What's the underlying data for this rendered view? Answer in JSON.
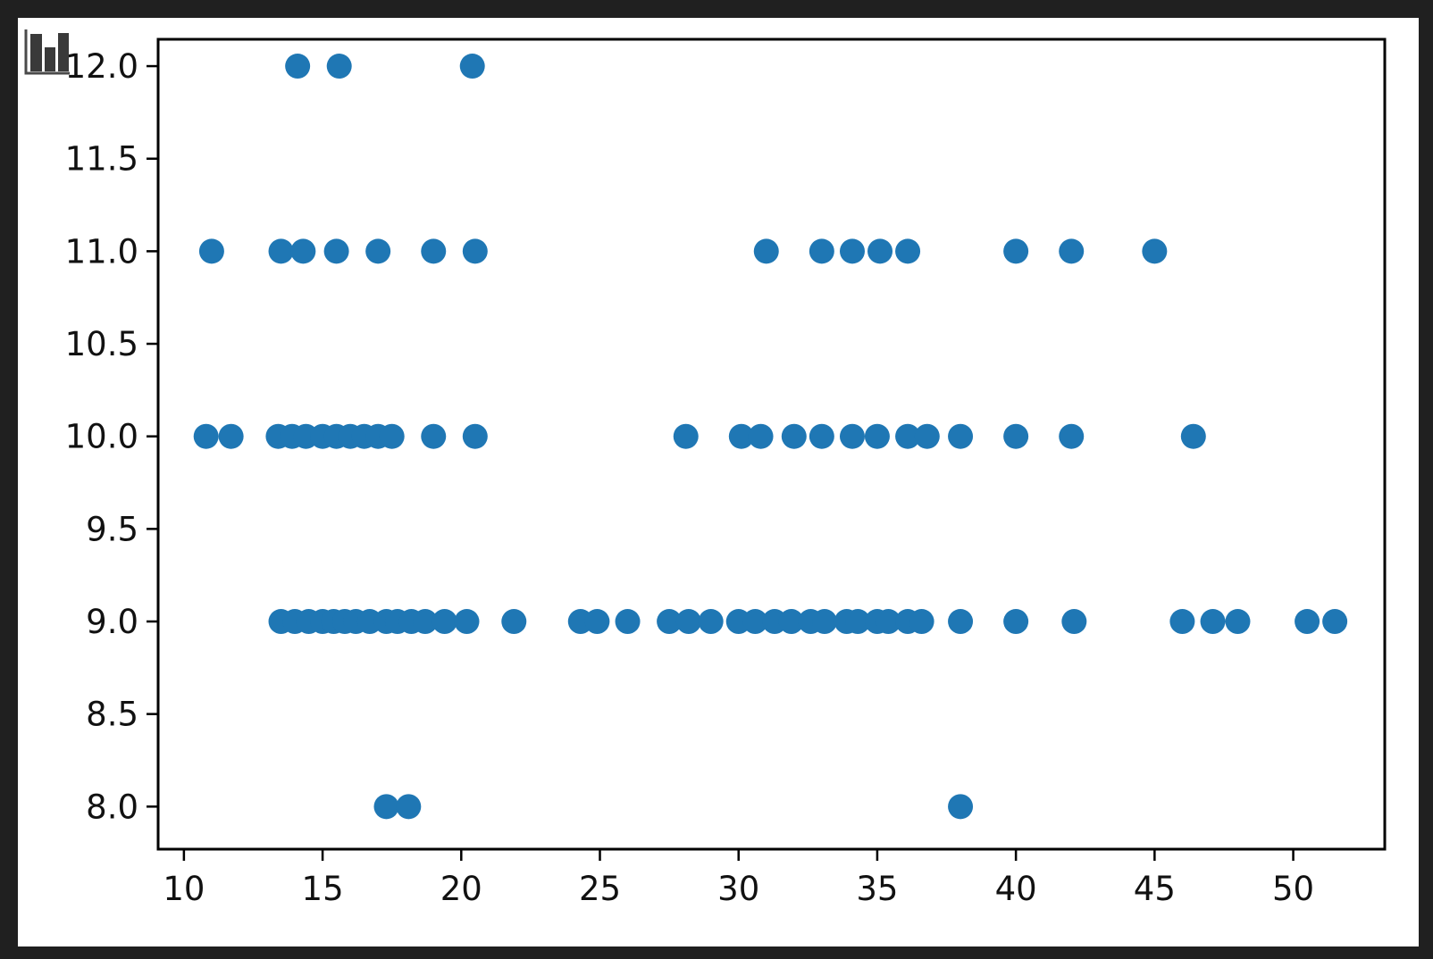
{
  "window": {
    "outer_background": "#202020",
    "figure_background": "#ffffff"
  },
  "icons": {
    "corner_icon": "bar-chart-icon"
  },
  "chart_data": {
    "type": "scatter",
    "title": "",
    "xlabel": "",
    "ylabel": "",
    "legend": null,
    "grid": false,
    "marker": "circle",
    "marker_color": "#1f77b4",
    "axis_color": "#000000",
    "xlim": [
      9.07,
      53.3
    ],
    "ylim": [
      7.77,
      12.145
    ],
    "x_ticks": [
      10,
      15,
      20,
      25,
      30,
      35,
      40,
      45,
      50
    ],
    "x_tick_labels": [
      "10",
      "15",
      "20",
      "25",
      "30",
      "35",
      "40",
      "45",
      "50"
    ],
    "y_ticks": [
      8.0,
      8.5,
      9.0,
      9.5,
      10.0,
      10.5,
      11.0,
      11.5,
      12.0
    ],
    "y_tick_labels": [
      "8.0",
      "8.5",
      "9.0",
      "9.5",
      "10.0",
      "10.5",
      "11.0",
      "11.5",
      "12.0"
    ],
    "points": [
      [
        14.1,
        12
      ],
      [
        15.6,
        12
      ],
      [
        20.4,
        12
      ],
      [
        11.0,
        11
      ],
      [
        13.5,
        11
      ],
      [
        14.3,
        11
      ],
      [
        15.5,
        11
      ],
      [
        17.0,
        11
      ],
      [
        19.0,
        11
      ],
      [
        20.5,
        11
      ],
      [
        31.0,
        11
      ],
      [
        33.0,
        11
      ],
      [
        34.1,
        11
      ],
      [
        35.1,
        11
      ],
      [
        36.1,
        11
      ],
      [
        40.0,
        11
      ],
      [
        42.0,
        11
      ],
      [
        45.0,
        11
      ],
      [
        10.8,
        10
      ],
      [
        11.7,
        10
      ],
      [
        13.4,
        10
      ],
      [
        13.9,
        10
      ],
      [
        14.4,
        10
      ],
      [
        15.0,
        10
      ],
      [
        15.5,
        10
      ],
      [
        16.0,
        10
      ],
      [
        16.5,
        10
      ],
      [
        17.0,
        10
      ],
      [
        17.5,
        10
      ],
      [
        19.0,
        10
      ],
      [
        20.5,
        10
      ],
      [
        28.1,
        10
      ],
      [
        30.1,
        10
      ],
      [
        30.8,
        10
      ],
      [
        32.0,
        10
      ],
      [
        33.0,
        10
      ],
      [
        34.1,
        10
      ],
      [
        35.0,
        10
      ],
      [
        36.1,
        10
      ],
      [
        36.8,
        10
      ],
      [
        38.0,
        10
      ],
      [
        40.0,
        10
      ],
      [
        42.0,
        10
      ],
      [
        46.4,
        10
      ],
      [
        13.5,
        9
      ],
      [
        14.0,
        9
      ],
      [
        14.5,
        9
      ],
      [
        15.0,
        9
      ],
      [
        15.4,
        9
      ],
      [
        15.8,
        9
      ],
      [
        16.2,
        9
      ],
      [
        16.7,
        9
      ],
      [
        17.3,
        9
      ],
      [
        17.7,
        9
      ],
      [
        18.2,
        9
      ],
      [
        18.7,
        9
      ],
      [
        19.4,
        9
      ],
      [
        20.2,
        9
      ],
      [
        21.9,
        9
      ],
      [
        24.3,
        9
      ],
      [
        24.9,
        9
      ],
      [
        26.0,
        9
      ],
      [
        27.5,
        9
      ],
      [
        28.2,
        9
      ],
      [
        29.0,
        9
      ],
      [
        30.0,
        9
      ],
      [
        30.6,
        9
      ],
      [
        31.3,
        9
      ],
      [
        31.9,
        9
      ],
      [
        32.6,
        9
      ],
      [
        33.1,
        9
      ],
      [
        33.9,
        9
      ],
      [
        34.3,
        9
      ],
      [
        35.0,
        9
      ],
      [
        35.4,
        9
      ],
      [
        36.1,
        9
      ],
      [
        36.6,
        9
      ],
      [
        38.0,
        9
      ],
      [
        40.0,
        9
      ],
      [
        42.1,
        9
      ],
      [
        46.0,
        9
      ],
      [
        47.1,
        9
      ],
      [
        48.0,
        9
      ],
      [
        50.5,
        9
      ],
      [
        51.5,
        9
      ],
      [
        17.3,
        8
      ],
      [
        18.1,
        8
      ],
      [
        38.0,
        8
      ]
    ]
  }
}
